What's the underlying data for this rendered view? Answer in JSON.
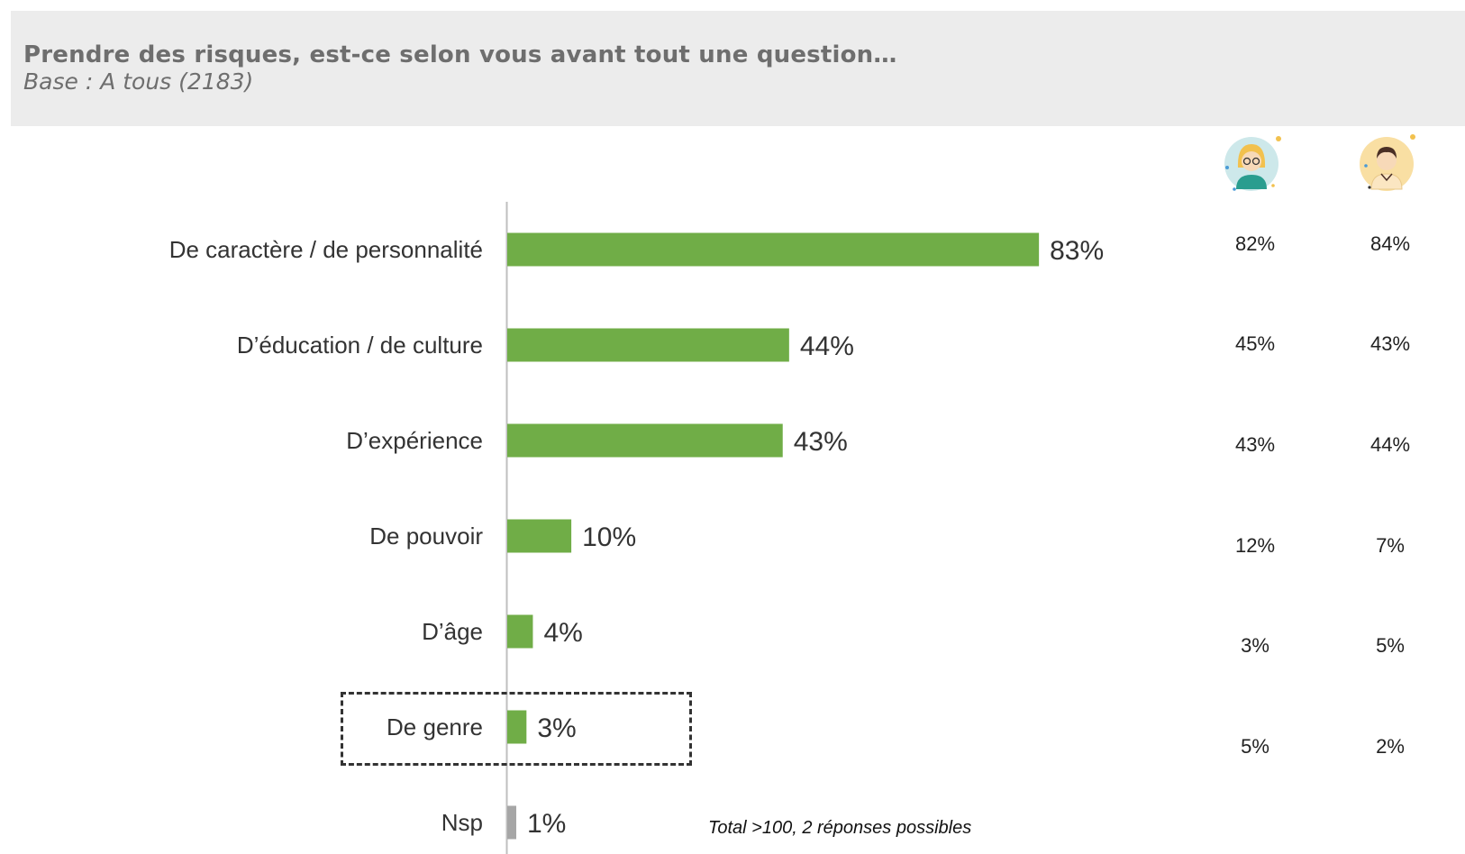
{
  "header": {
    "title": "Prendre des risques, est-ce selon vous avant tout une question…",
    "subtitle": "Base : A tous (2183)"
  },
  "columns": {
    "women": {
      "icon": "woman-avatar-icon",
      "values": [
        "82%",
        "45%",
        "43%",
        "12%",
        "3%",
        "5%"
      ]
    },
    "men": {
      "icon": "man-avatar-icon",
      "values": [
        "84%",
        "43%",
        "44%",
        "7%",
        "5%",
        "2%"
      ]
    }
  },
  "note": "Total >100, 2 réponses possibles",
  "colors": {
    "bar": "#70ad47",
    "bar_nsp": "#a6a6a6",
    "axis": "#bfbfbf",
    "text": "#333333"
  },
  "chart_data": {
    "type": "bar",
    "orientation": "horizontal",
    "categories": [
      "De caractère / de personnalité",
      "D’éducation / de culture",
      "D’expérience",
      "De pouvoir",
      "D’âge",
      "De genre",
      "Nsp"
    ],
    "values": [
      83,
      44,
      43,
      10,
      4,
      3,
      1
    ],
    "value_labels": [
      "83%",
      "44%",
      "43%",
      "10%",
      "4%",
      "3%",
      "1%"
    ],
    "highlighted_category": "De genre",
    "xlim": [
      0,
      100
    ]
  }
}
